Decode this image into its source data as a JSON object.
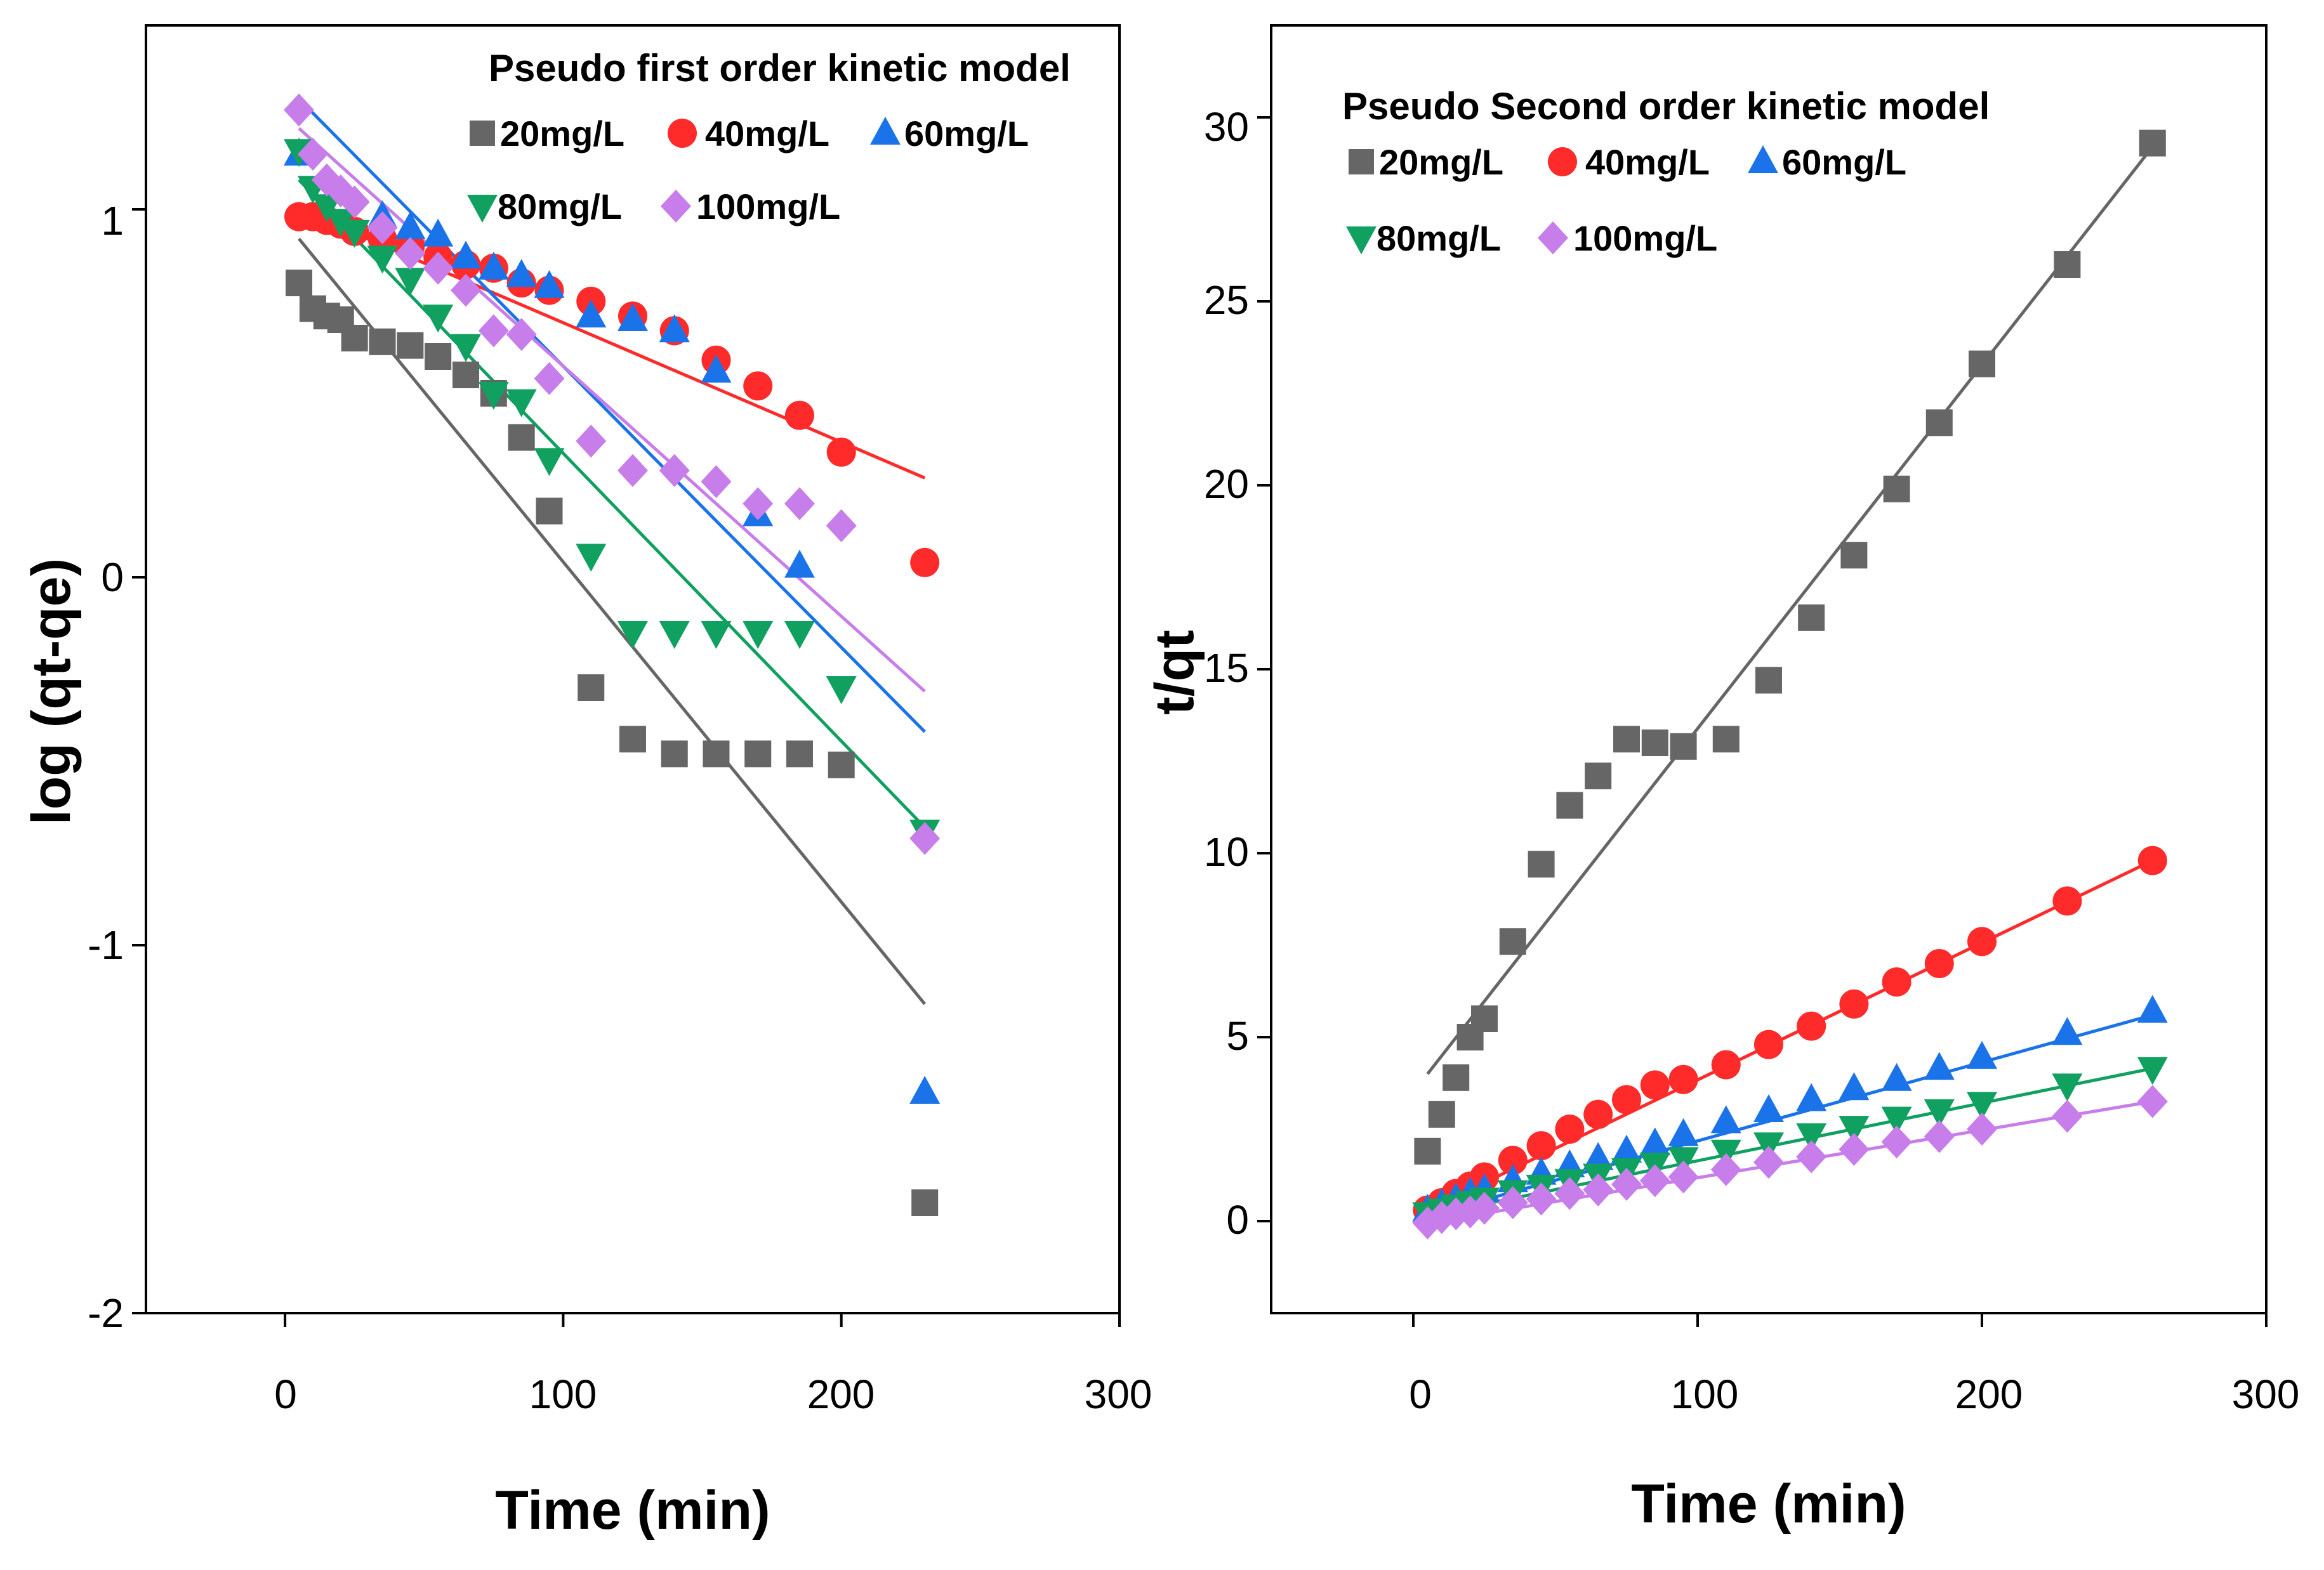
{
  "colors": {
    "20mg/L": "#666666",
    "40mg/L": "#ff2a2a",
    "60mg/L": "#1a73e8",
    "80mg/L": "#10a060",
    "100mg/L": "#c77dea"
  },
  "chart_data": [
    {
      "type": "scatter",
      "title": "Pseudo first order kinetic model",
      "xlabel": "Time (min)",
      "ylabel": "log (qt-qe)",
      "xlim": [
        -50,
        300
      ],
      "ylim": [
        -2,
        1.5
      ],
      "xticks": [
        0,
        100,
        200,
        300
      ],
      "xtick_labels": [
        "0",
        "100",
        "200",
        "300"
      ],
      "yticks": [
        -2,
        -1,
        0,
        1
      ],
      "ytick_labels": [
        "-2",
        "-1",
        "0",
        "1"
      ],
      "legend": [
        "20mg/L",
        "40mg/L",
        "60mg/L",
        "80mg/L",
        "100mg/L"
      ],
      "series": [
        {
          "name": "20mg/L",
          "marker": "square",
          "x": [
            5,
            10,
            15,
            20,
            25,
            35,
            45,
            55,
            65,
            75,
            85,
            95,
            110,
            125,
            140,
            155,
            170,
            185,
            200,
            230
          ],
          "y": [
            0.8,
            0.73,
            0.71,
            0.7,
            0.65,
            0.64,
            0.63,
            0.6,
            0.55,
            0.5,
            0.38,
            0.18,
            -0.3,
            -0.44,
            -0.48,
            -0.48,
            -0.48,
            -0.48,
            -0.51,
            -1.7
          ],
          "fit": [
            [
              5,
              0.92
            ],
            [
              230,
              -1.16
            ]
          ]
        },
        {
          "name": "40mg/L",
          "marker": "circle",
          "x": [
            5,
            10,
            15,
            20,
            25,
            35,
            45,
            55,
            65,
            75,
            85,
            95,
            110,
            125,
            140,
            155,
            170,
            185,
            200,
            230
          ],
          "y": [
            0.98,
            0.98,
            0.97,
            0.96,
            0.94,
            0.92,
            0.9,
            0.87,
            0.85,
            0.84,
            0.8,
            0.78,
            0.75,
            0.71,
            0.67,
            0.59,
            0.52,
            0.44,
            0.34,
            0.04
          ],
          "fit": [
            [
              5,
              1.0
            ],
            [
              230,
              0.27
            ]
          ]
        },
        {
          "name": "60mg/L",
          "marker": "triangle-up",
          "x": [
            5,
            35,
            45,
            55,
            65,
            75,
            85,
            95,
            110,
            125,
            140,
            155,
            170,
            185,
            230
          ],
          "y": [
            1.15,
            0.98,
            0.95,
            0.93,
            0.87,
            0.84,
            0.82,
            0.79,
            0.71,
            0.7,
            0.67,
            0.56,
            0.17,
            0.03,
            -1.4
          ],
          "fit": [
            [
              5,
              1.3
            ],
            [
              230,
              -0.42
            ]
          ]
        },
        {
          "name": "80mg/L",
          "marker": "triangle-down",
          "x": [
            5,
            10,
            15,
            20,
            25,
            35,
            45,
            55,
            65,
            75,
            85,
            95,
            110,
            125,
            140,
            155,
            170,
            185,
            200,
            230
          ],
          "y": [
            1.16,
            1.06,
            1.01,
            0.97,
            0.94,
            0.87,
            0.81,
            0.71,
            0.63,
            0.5,
            0.48,
            0.32,
            0.06,
            -0.15,
            -0.15,
            -0.15,
            -0.15,
            -0.15,
            -0.3,
            -0.69
          ],
          "fit": [
            [
              5,
              1.08
            ],
            [
              230,
              -0.68
            ]
          ]
        },
        {
          "name": "100mg/L",
          "marker": "diamond",
          "x": [
            5,
            10,
            15,
            20,
            25,
            35,
            45,
            55,
            65,
            75,
            85,
            95,
            110,
            125,
            140,
            155,
            170,
            185,
            200,
            230
          ],
          "y": [
            1.27,
            1.15,
            1.08,
            1.05,
            1.02,
            0.95,
            0.88,
            0.84,
            0.78,
            0.67,
            0.66,
            0.54,
            0.37,
            0.29,
            0.29,
            0.26,
            0.2,
            0.2,
            0.14,
            -0.71
          ],
          "fit": [
            [
              5,
              1.22
            ],
            [
              230,
              -0.31
            ]
          ]
        }
      ]
    },
    {
      "type": "scatter",
      "title": "Pseudo Second order kinetic model",
      "xlabel": "Time (min)",
      "ylabel": "t/qt",
      "xlim": [
        -50,
        300
      ],
      "ylim": [
        -2.5,
        32.5
      ],
      "xticks": [
        0,
        100,
        200,
        300
      ],
      "xtick_labels": [
        "0",
        "100",
        "200",
        "300"
      ],
      "yticks": [
        0,
        5,
        10,
        15,
        20,
        25,
        30
      ],
      "ytick_labels": [
        "0",
        "5",
        "10",
        "15",
        "20",
        "25",
        "30"
      ],
      "legend": [
        "20mg/L",
        "40mg/L",
        "60mg/L",
        "80mg/L",
        "100mg/L"
      ],
      "series": [
        {
          "name": "20mg/L",
          "marker": "square",
          "x": [
            5,
            10,
            15,
            20,
            25,
            35,
            45,
            55,
            65,
            75,
            85,
            95,
            110,
            125,
            140,
            155,
            170,
            185,
            200,
            230,
            260
          ],
          "y": [
            1.9,
            2.9,
            3.9,
            5.0,
            5.5,
            7.6,
            9.7,
            11.3,
            12.1,
            13.1,
            13.0,
            12.9,
            13.1,
            14.7,
            16.4,
            18.1,
            19.9,
            21.7,
            23.3,
            26.0,
            29.3
          ],
          "fit": [
            [
              5,
              4.0
            ],
            [
              260,
              29.2
            ]
          ]
        },
        {
          "name": "40mg/L",
          "marker": "circle",
          "x": [
            5,
            10,
            15,
            20,
            25,
            35,
            45,
            55,
            65,
            75,
            85,
            95,
            110,
            125,
            140,
            155,
            170,
            185,
            200,
            230,
            260
          ],
          "y": [
            0.3,
            0.5,
            0.75,
            0.95,
            1.2,
            1.65,
            2.05,
            2.5,
            2.9,
            3.3,
            3.7,
            3.85,
            4.25,
            4.8,
            5.3,
            5.9,
            6.5,
            7.0,
            7.6,
            8.7,
            9.8
          ],
          "fit": [
            [
              5,
              0.3
            ],
            [
              260,
              9.8
            ]
          ]
        },
        {
          "name": "60mg/L",
          "marker": "triangle-up",
          "x": [
            5,
            10,
            15,
            20,
            25,
            35,
            45,
            55,
            65,
            75,
            85,
            95,
            110,
            125,
            140,
            155,
            170,
            185,
            200,
            230,
            260
          ],
          "y": [
            0.3,
            0.45,
            0.6,
            0.75,
            0.85,
            1.1,
            1.3,
            1.5,
            1.7,
            1.9,
            2.1,
            2.35,
            2.7,
            3.0,
            3.3,
            3.6,
            3.85,
            4.15,
            4.45,
            5.1,
            5.7
          ],
          "fit": [
            [
              5,
              0.15
            ],
            [
              260,
              5.6
            ]
          ]
        },
        {
          "name": "80mg/L",
          "marker": "triangle-down",
          "x": [
            5,
            10,
            15,
            20,
            25,
            35,
            45,
            55,
            65,
            75,
            85,
            95,
            110,
            125,
            140,
            155,
            170,
            185,
            200,
            230,
            260
          ],
          "y": [
            0.2,
            0.3,
            0.4,
            0.5,
            0.6,
            0.8,
            0.95,
            1.1,
            1.25,
            1.4,
            1.55,
            1.7,
            1.9,
            2.1,
            2.35,
            2.55,
            2.8,
            3.0,
            3.2,
            3.7,
            4.15
          ],
          "fit": [
            [
              5,
              0.15
            ],
            [
              260,
              4.15
            ]
          ]
        },
        {
          "name": "100mg/L",
          "marker": "diamond",
          "x": [
            5,
            10,
            15,
            20,
            25,
            35,
            45,
            55,
            65,
            75,
            85,
            95,
            110,
            125,
            140,
            155,
            170,
            185,
            200,
            230,
            260
          ],
          "y": [
            -0.05,
            0.1,
            0.2,
            0.25,
            0.35,
            0.5,
            0.6,
            0.75,
            0.85,
            1.0,
            1.1,
            1.2,
            1.4,
            1.6,
            1.75,
            1.95,
            2.15,
            2.3,
            2.5,
            2.85,
            3.25
          ],
          "fit": [
            [
              5,
              -0.05
            ],
            [
              260,
              3.25
            ]
          ]
        }
      ]
    }
  ]
}
